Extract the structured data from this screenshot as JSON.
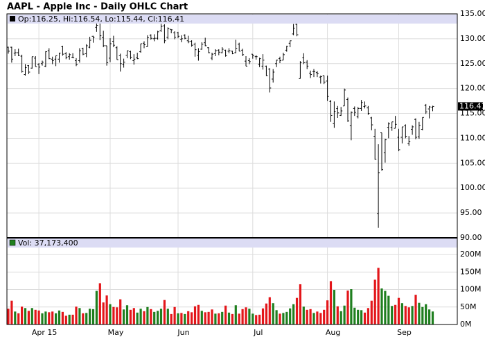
{
  "chart_data": [
    {
      "type": "ohlc",
      "title": "AAPL - Apple Inc - Daily OHLC Chart",
      "legend": "Op:116.25, Hi:116.54, Lo:115.44, Cl:116.41",
      "color": "#000000",
      "open": [
        128.3,
        128.3,
        127.1,
        127.2,
        126.5,
        122.8,
        124.6,
        124.1,
        126.1,
        124.8,
        125.0,
        124.5,
        127.6,
        125.9,
        125.9,
        125.9,
        128.4,
        127.0,
        126.4,
        126.3,
        125.6,
        125.6,
        128.1,
        127.0,
        128.3,
        130.5,
        132.3,
        134.5,
        130.2,
        128.6,
        126.1,
        129.5,
        128.2,
        126.6,
        124.8,
        126.7,
        127.4,
        125.6,
        126.2,
        127.4,
        129.1,
        128.4,
        130.7,
        130.0,
        130.1,
        131.6,
        132.6,
        130.3,
        131.9,
        131.2,
        131.2,
        129.9,
        130.7,
        129.6,
        129.5,
        128.9,
        126.7,
        127.9,
        129.2,
        128.2,
        126.1,
        127.0,
        127.7,
        127.2,
        127.7,
        127.5,
        127.5,
        127.2,
        128.9,
        127.7,
        125.5,
        125.6,
        126.9,
        126.4,
        124.9,
        124.5,
        124.5,
        123.9,
        121.9,
        125.0,
        126.0,
        125.7,
        127.7,
        129.1,
        130.97,
        132.9,
        121.99,
        126.2,
        125.3,
        123.1,
        123.4,
        123.2,
        122.3,
        122.6,
        121.5,
        117.4,
        112.95,
        115.97,
        114.6,
        116.5,
        117.8,
        112.5,
        116.0,
        114.3,
        116.0,
        116.4,
        116.1,
        114.1,
        110.4,
        94.9,
        111.1,
        107.1,
        112.2,
        112.2,
        112.0,
        110.2,
        110.2,
        112.5,
        108.97,
        111.8,
        113.8,
        110.3,
        111.8,
        116.6,
        115.9,
        116.25
      ],
      "high": [
        128.4,
        128.4,
        127.9,
        128.0,
        126.8,
        124.9,
        124.7,
        126.4,
        126.5,
        125.1,
        125.6,
        127.5,
        128.1,
        126.4,
        126.6,
        127.2,
        128.6,
        127.3,
        127.1,
        127.1,
        126.1,
        128.1,
        128.2,
        128.9,
        130.4,
        130.6,
        133.1,
        134.5,
        131.6,
        128.6,
        130.1,
        130.6,
        128.5,
        127.0,
        126.0,
        127.6,
        127.6,
        126.9,
        127.2,
        129.0,
        129.5,
        130.7,
        130.9,
        130.9,
        131.6,
        133.0,
        132.9,
        132.3,
        131.9,
        131.5,
        131.4,
        130.7,
        130.9,
        130.6,
        129.7,
        129.2,
        128.1,
        129.3,
        130.2,
        128.3,
        127.2,
        127.9,
        127.9,
        128.3,
        127.8,
        128.1,
        127.6,
        129.8,
        129.2,
        127.99,
        126.5,
        126.1,
        126.9,
        126.7,
        126.2,
        126.9,
        124.6,
        124.1,
        123.9,
        125.8,
        126.4,
        127.2,
        128.6,
        129.6,
        132.97,
        133.0,
        125.5,
        127.1,
        125.7,
        123.6,
        123.9,
        123.5,
        122.6,
        122.6,
        122.6,
        117.7,
        117.4,
        116.5,
        116.3,
        119.99,
        118.2,
        115.4,
        116.4,
        116.3,
        117.7,
        117.4,
        116.5,
        114.3,
        111.9,
        108.8,
        111.1,
        109.9,
        113.2,
        113.3,
        114.5,
        111.9,
        112.3,
        112.8,
        110.45,
        112.6,
        114.0,
        113.3,
        114.2,
        116.9,
        116.5,
        116.54
      ],
      "low": [
        127.0,
        125.2,
        126.5,
        126.5,
        123.2,
        122.6,
        122.9,
        124.0,
        124.4,
        122.9,
        124.6,
        124.3,
        125.9,
        124.9,
        124.5,
        125.2,
        126.6,
        125.9,
        125.8,
        126.1,
        124.5,
        125.2,
        126.7,
        126.3,
        128.1,
        129.2,
        131.4,
        129.7,
        128.3,
        124.6,
        125.3,
        128.3,
        125.8,
        123.4,
        124.2,
        126.1,
        125.9,
        124.8,
        125.9,
        127.2,
        128.1,
        128.4,
        129.8,
        129.5,
        129.8,
        131.4,
        129.1,
        129.9,
        131.1,
        129.9,
        130.1,
        129.3,
        129.9,
        129.1,
        128.4,
        126.4,
        125.6,
        127.8,
        128.5,
        127.1,
        125.7,
        126.5,
        126.7,
        127.1,
        126.4,
        127.1,
        126.9,
        127.1,
        127.5,
        126.5,
        124.5,
        124.9,
        125.99,
        125.8,
        124.3,
        123.8,
        122.5,
        119.2,
        121.2,
        124.3,
        125.1,
        125.7,
        127.4,
        128.3,
        130.7,
        130.5,
        121.99,
        124.9,
        123.9,
        122.1,
        122.3,
        122.3,
        121.0,
        120.9,
        117.5,
        113.3,
        112.1,
        114.1,
        114.5,
        116.5,
        113.3,
        109.6,
        114.5,
        114.0,
        115.5,
        116.0,
        114.7,
        111.6,
        105.7,
        92.0,
        103.5,
        105.1,
        110.0,
        111.5,
        112.0,
        107.4,
        108.98,
        110.0,
        108.5,
        110.7,
        109.8,
        109.9,
        111.6,
        114.9,
        114.0,
        115.44
      ],
      "close": [
        127.5,
        125.9,
        127.2,
        126.7,
        123.4,
        124.2,
        123.3,
        126.4,
        124.4,
        124.3,
        125.3,
        127.4,
        126.0,
        125.6,
        126.6,
        127.1,
        126.9,
        126.3,
        126.8,
        126.2,
        124.8,
        127.6,
        126.9,
        128.6,
        129.7,
        130.3,
        132.7,
        130.6,
        128.6,
        125.2,
        129.0,
        128.7,
        125.8,
        125.0,
        125.3,
        127.6,
        126.3,
        125.9,
        126.0,
        129.0,
        128.8,
        130.2,
        130.1,
        130.1,
        131.4,
        132.5,
        129.6,
        132.0,
        131.8,
        130.3,
        130.5,
        130.0,
        130.1,
        129.4,
        128.7,
        127.8,
        127.4,
        128.9,
        128.6,
        127.2,
        126.9,
        127.6,
        127.3,
        127.9,
        126.6,
        127.6,
        127.0,
        128.1,
        127.5,
        126.8,
        124.5,
        125.4,
        126.6,
        126.4,
        126.0,
        125.7,
        122.6,
        120.1,
        123.3,
        125.7,
        125.6,
        126.8,
        128.5,
        129.6,
        132.1,
        130.8,
        125.2,
        125.2,
        124.5,
        122.8,
        123.4,
        123.0,
        122.4,
        121.3,
        118.4,
        114.6,
        115.4,
        115.1,
        115.5,
        119.7,
        113.5,
        115.2,
        115.2,
        116.0,
        117.2,
        116.5,
        115.0,
        112.7,
        105.8,
        103.1,
        103.7,
        109.7,
        112.9,
        113.3,
        112.8,
        107.7,
        112.3,
        110.4,
        109.3,
        112.3,
        110.2,
        112.6,
        114.2,
        115.3,
        116.3,
        116.41
      ],
      "ylim": [
        90,
        135
      ],
      "yticks": [
        {
          "value": 90,
          "label": "90.00"
        },
        {
          "value": 95,
          "label": "95.00"
        },
        {
          "value": 100,
          "label": "100.00"
        },
        {
          "value": 105,
          "label": "105.00"
        },
        {
          "value": 110,
          "label": "110.00"
        },
        {
          "value": 115,
          "label": "115.00"
        },
        {
          "value": 120,
          "label": "120.00"
        },
        {
          "value": 125,
          "label": "125.00"
        },
        {
          "value": 130,
          "label": "130.00"
        },
        {
          "value": 135,
          "label": "135.00"
        }
      ],
      "grid": true
    },
    {
      "type": "bar",
      "legend": "Vol: 37,173,400",
      "up_color": "#1f7f1f",
      "down_color": "#e3161a",
      "categories": [
        null,
        null,
        null,
        null,
        null,
        null,
        null,
        null,
        null,
        "Apr 15",
        null,
        null,
        null,
        null,
        null,
        null,
        null,
        null,
        null,
        null,
        null,
        null,
        null,
        null,
        null,
        null,
        null,
        null,
        null,
        null,
        "May",
        null,
        null,
        null,
        null,
        null,
        null,
        null,
        null,
        null,
        null,
        null,
        null,
        null,
        null,
        null,
        null,
        null,
        null,
        null,
        "Jun",
        null,
        null,
        null,
        null,
        null,
        null,
        null,
        null,
        null,
        null,
        null,
        null,
        null,
        null,
        null,
        null,
        null,
        null,
        null,
        null,
        null,
        "Jul",
        null,
        null,
        null,
        null,
        null,
        null,
        null,
        null,
        null,
        null,
        null,
        null,
        null,
        null,
        null,
        null,
        null,
        null,
        null,
        null,
        null,
        "Aug",
        null,
        null,
        null,
        null,
        null,
        null,
        null,
        null,
        null,
        null,
        null,
        null,
        null,
        null,
        null,
        null,
        null,
        null,
        null,
        null,
        "Sep",
        null,
        null,
        null,
        null,
        null,
        null,
        null,
        null,
        null,
        null
      ],
      "values": [
        45000000,
        68000000,
        37000000,
        32000000,
        51000000,
        47000000,
        39000000,
        47000000,
        42000000,
        40000000,
        32000000,
        37000000,
        35000000,
        37000000,
        32000000,
        40000000,
        36000000,
        25000000,
        28000000,
        28000000,
        51000000,
        47000000,
        32000000,
        33000000,
        45000000,
        44000000,
        96000000,
        118000000,
        63000000,
        83000000,
        58000000,
        50000000,
        49000000,
        72000000,
        43000000,
        55000000,
        42000000,
        47000000,
        34000000,
        45000000,
        38000000,
        50000000,
        44000000,
        36000000,
        39000000,
        45000000,
        70000000,
        45000000,
        30000000,
        50000000,
        32000000,
        33000000,
        30000000,
        38000000,
        35000000,
        52000000,
        56000000,
        39000000,
        35000000,
        36000000,
        43000000,
        31000000,
        32000000,
        36000000,
        54000000,
        34000000,
        30000000,
        55000000,
        31000000,
        44000000,
        49000000,
        45000000,
        31000000,
        27000000,
        28000000,
        46000000,
        60000000,
        78000000,
        61000000,
        41000000,
        31000000,
        33000000,
        36000000,
        46000000,
        58000000,
        76000000,
        115000000,
        51000000,
        42000000,
        44000000,
        33000000,
        37000000,
        33000000,
        42000000,
        69000000,
        124000000,
        99000000,
        52000000,
        38000000,
        54000000,
        97000000,
        101000000,
        48000000,
        42000000,
        41000000,
        34000000,
        47000000,
        68000000,
        128000000,
        162000000,
        103000000,
        96000000,
        82000000,
        53000000,
        56000000,
        76000000,
        61000000,
        53000000,
        49000000,
        53000000,
        85000000,
        62000000,
        50000000,
        58000000,
        43000000,
        37173400
      ],
      "ylim": [
        0,
        220000000
      ],
      "yticks": [
        {
          "value": 0,
          "label": "0M"
        },
        {
          "value": 50000000,
          "label": "50M"
        },
        {
          "value": 100000000,
          "label": "100M"
        },
        {
          "value": 150000000,
          "label": "150M"
        },
        {
          "value": 200000000,
          "label": "200M"
        }
      ],
      "grid": true
    }
  ]
}
